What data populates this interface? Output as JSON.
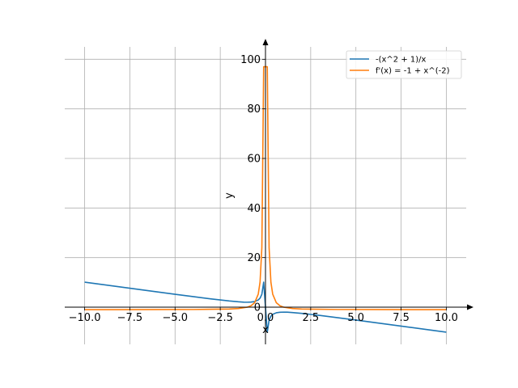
{
  "chart_data": {
    "type": "line",
    "title": "",
    "xlabel": "x",
    "ylabel": "y",
    "xlim": [
      -11.1,
      11.1
    ],
    "ylim": [
      -15,
      105
    ],
    "grid": true,
    "legend_position": "top-right",
    "x_ticks": [
      -10.0,
      -7.5,
      -5.0,
      -2.5,
      0.0,
      2.5,
      5.0,
      7.5,
      10.0
    ],
    "x_tick_labels": [
      "−10.0",
      "−7.5",
      "−5.0",
      "−2.5",
      "0.0",
      "2.5",
      "5.0",
      "7.5",
      "10.0"
    ],
    "y_ticks": [
      0,
      20,
      40,
      60,
      80,
      100
    ],
    "y_tick_labels": [
      "0",
      "20",
      "40",
      "60",
      "80",
      "100"
    ],
    "series": [
      {
        "name": "-(x^2 + 1)/x",
        "color": "#1f77b4",
        "x": [
          -10.0,
          -9.0,
          -8.0,
          -7.0,
          -6.0,
          -5.0,
          -4.0,
          -3.0,
          -2.0,
          -1.5,
          -1.2,
          -1.0,
          -0.8,
          -0.6,
          -0.4,
          -0.3,
          -0.2,
          -0.1,
          0.1,
          0.2,
          0.3,
          0.4,
          0.6,
          0.8,
          1.0,
          1.2,
          1.5,
          2.0,
          3.0,
          4.0,
          5.0,
          6.0,
          7.0,
          8.0,
          9.0,
          10.0
        ],
        "y": [
          10.1,
          9.11,
          8.125,
          7.143,
          6.167,
          5.2,
          4.25,
          3.333,
          2.5,
          2.167,
          2.033,
          2.0,
          2.05,
          2.267,
          2.9,
          3.633,
          5.2,
          10.1,
          -10.1,
          -5.2,
          -3.633,
          -2.9,
          -2.267,
          -2.05,
          -2.0,
          -2.033,
          -2.167,
          -2.5,
          -3.333,
          -4.25,
          -5.2,
          -6.167,
          -7.143,
          -8.125,
          -9.111,
          -10.1
        ]
      },
      {
        "name": "f'(x) = -1 + x^(-2)",
        "color": "#ff7f0e",
        "x": [
          -10.0,
          -8.0,
          -6.0,
          -4.0,
          -2.0,
          -1.5,
          -1.0,
          -0.8,
          -0.6,
          -0.4,
          -0.3,
          -0.2,
          -0.1,
          0.1,
          0.2,
          0.3,
          0.4,
          0.6,
          0.8,
          1.0,
          1.5,
          2.0,
          4.0,
          6.0,
          8.0,
          10.0
        ],
        "y": [
          -0.99,
          -0.984,
          -0.972,
          -0.9375,
          -0.75,
          -0.556,
          0.0,
          0.5625,
          1.778,
          5.25,
          10.11,
          24.0,
          97.0,
          97.0,
          24.0,
          10.11,
          5.25,
          1.778,
          0.5625,
          0.0,
          -0.556,
          -0.75,
          -0.9375,
          -0.972,
          -0.984,
          -0.99
        ]
      }
    ]
  }
}
